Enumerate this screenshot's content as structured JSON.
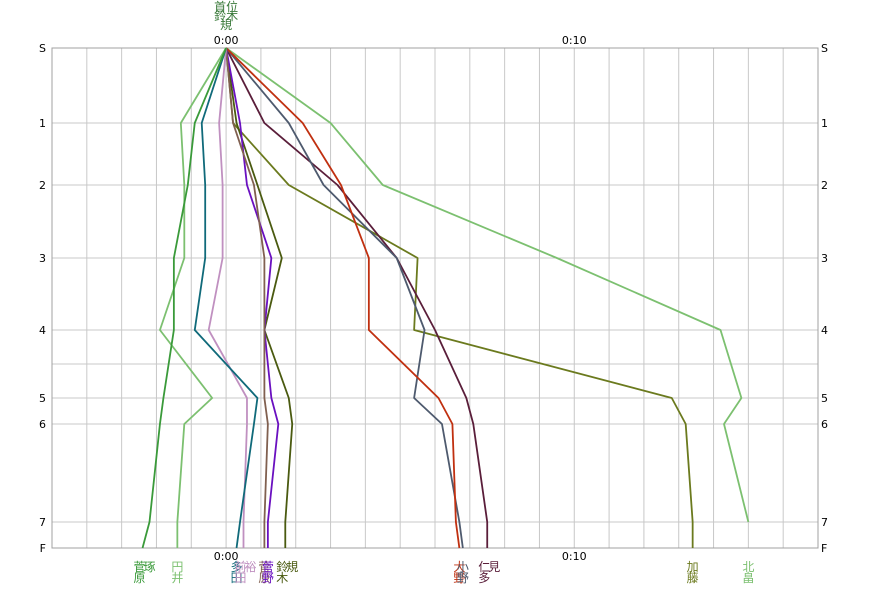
{
  "chart_data": {
    "type": "line",
    "orientation": "vertical-race-gap",
    "x_axis": {
      "unit": "minutes",
      "range": [
        -5,
        17
      ],
      "ticks": [
        {
          "value": 0,
          "label": "0:00"
        },
        {
          "value": 10,
          "label": "0:10"
        }
      ],
      "grid_step": 1
    },
    "y_axis": {
      "categories": [
        "S",
        "1",
        "2",
        "3",
        "4",
        "5",
        "6",
        "7",
        "F"
      ],
      "grid_only_levels": [
        4.5
      ]
    },
    "grid": true,
    "top_reference_label": "首位\n鈴木\n規",
    "series": [
      {
        "name": "北畠",
        "color": "#7cc070",
        "values": [
          0,
          3.0,
          4.5,
          9.5,
          14.2,
          14.8,
          14.3,
          15.0
        ]
      },
      {
        "name": "加藤",
        "color": "#6b7a1e",
        "values": [
          0,
          0.2,
          1.8,
          5.5,
          5.4,
          12.8,
          13.2,
          13.4,
          13.4
        ]
      },
      {
        "name": "仁多見",
        "color": "#5a1e3a",
        "values": [
          0,
          1.1,
          3.2,
          4.9,
          6.0,
          6.9,
          7.1,
          7.5,
          7.5
        ]
      },
      {
        "name": "小野",
        "color": "#4e5a6e",
        "values": [
          0,
          1.8,
          2.8,
          4.9,
          5.7,
          5.4,
          6.2,
          6.7,
          6.8
        ]
      },
      {
        "name": "大野",
        "color": "#c03010",
        "values": [
          0,
          2.2,
          3.3,
          4.1,
          4.1,
          6.1,
          6.5,
          6.6,
          6.7
        ]
      },
      {
        "name": "鈴木規",
        "color": "#4a5a10",
        "values": [
          0,
          0.3,
          0.9,
          1.6,
          1.1,
          1.8,
          1.9,
          1.7,
          1.7
        ]
      },
      {
        "name": "菅野",
        "color": "#6a10c0",
        "values": [
          0,
          0.4,
          0.6,
          1.3,
          1.1,
          1.3,
          1.5,
          1.2,
          1.2
        ]
      },
      {
        "name": "菅原",
        "color": "#806050",
        "values": [
          0,
          0.2,
          0.8,
          1.1,
          1.1,
          1.1,
          1.2,
          1.1,
          1.1
        ]
      },
      {
        "name": "前田裕",
        "color": "#c090c0",
        "values": [
          0,
          -0.2,
          -0.1,
          -0.1,
          -0.5,
          0.6,
          0.6,
          0.5,
          0.5
        ]
      },
      {
        "name": "多田",
        "color": "#106a7a",
        "values": [
          0,
          -0.7,
          -0.6,
          -0.6,
          -0.9,
          0.9,
          0.8,
          0.4,
          0.3
        ]
      },
      {
        "name": "円井",
        "color": "#7cc070",
        "values": [
          0,
          -1.3,
          -1.2,
          -1.2,
          -1.9,
          -0.4,
          -1.2,
          -1.4,
          -1.4
        ]
      },
      {
        "name": "菅原琢",
        "color": "#3a9a3a",
        "values": [
          0,
          -0.9,
          -1.1,
          -1.5,
          -1.5,
          -1.8,
          -1.9,
          -2.2,
          -2.4
        ]
      }
    ]
  }
}
